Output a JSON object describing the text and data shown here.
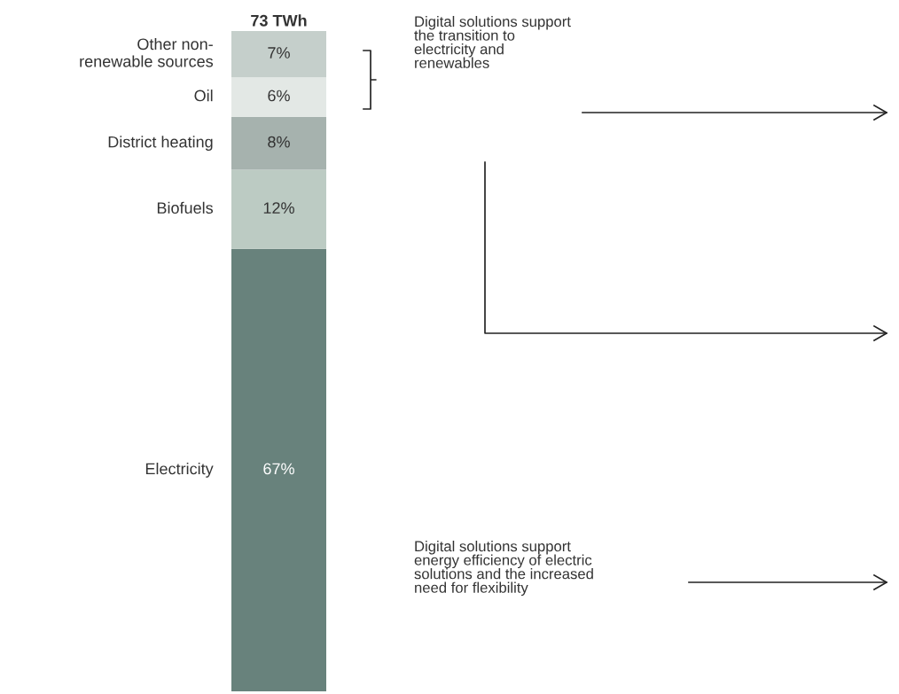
{
  "chart_data": {
    "type": "bar",
    "stacked": true,
    "title": "73 TWh",
    "categories": [
      null
    ],
    "series": [
      {
        "name": "Electricity",
        "color": "#68827c",
        "values": [
          67
        ],
        "value_labels": [
          "67%"
        ]
      },
      {
        "name": "Biofuels",
        "color": "#bccbc3",
        "values": [
          12
        ],
        "value_labels": [
          "12%"
        ]
      },
      {
        "name": "District heating",
        "color": "#a6b2ae",
        "values": [
          8
        ],
        "value_labels": [
          "8%"
        ]
      },
      {
        "name": "Oil",
        "color": "#e3e8e5",
        "values": [
          6
        ],
        "value_labels": [
          "6%"
        ]
      },
      {
        "name": "Other non-\nrenewable sources",
        "color": "#c5cfcb",
        "values": [
          7
        ],
        "value_labels": [
          "7%"
        ]
      }
    ],
    "annotations": [
      "Digital solutions support\nthe transition to\nelectricity and\nrenewables",
      "Digital solutions support\nenergy efficiency of electric\nsolutions and the increased\nneed for flexibility"
    ],
    "legend": false
  }
}
